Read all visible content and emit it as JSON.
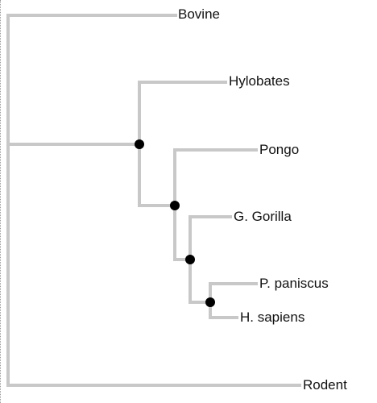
{
  "diagram": {
    "type": "phylogenetic-tree",
    "branch_color": "#c8c8c8",
    "node_color": "#000000",
    "leaves": [
      {
        "key": "bovine",
        "label": "Bovine"
      },
      {
        "key": "hylobates",
        "label": "Hylobates"
      },
      {
        "key": "pongo",
        "label": "Pongo"
      },
      {
        "key": "gorilla",
        "label": "G. Gorilla"
      },
      {
        "key": "paniscus",
        "label": "P. paniscus"
      },
      {
        "key": "sapiens",
        "label": "H. sapiens"
      },
      {
        "key": "rodent",
        "label": "Rodent"
      }
    ]
  }
}
